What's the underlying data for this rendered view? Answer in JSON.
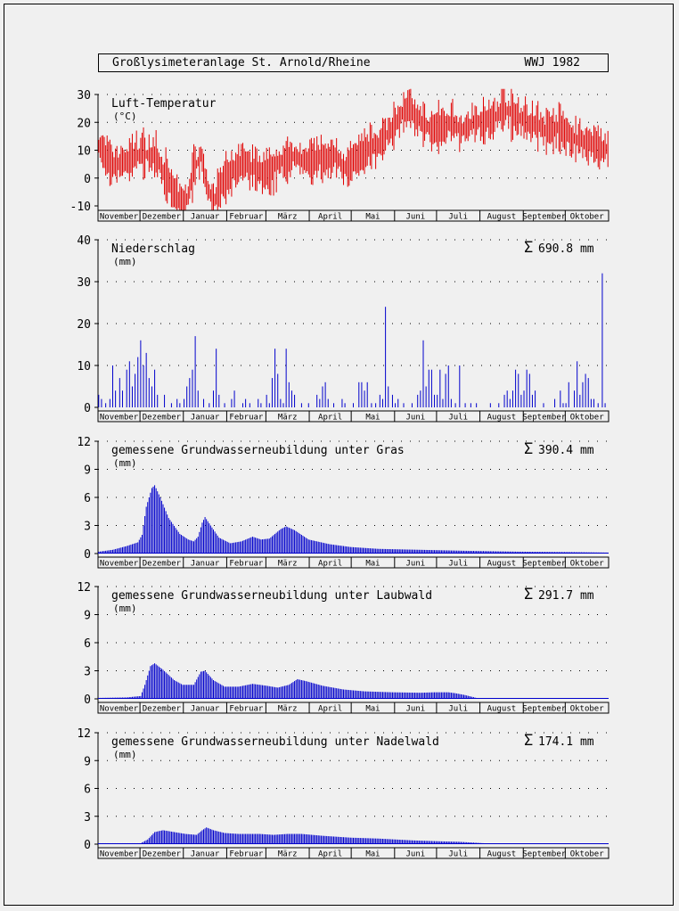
{
  "header": {
    "title": "Großlysimeteranlage St. Arnold/Rheine",
    "year": "WWJ 1982"
  },
  "months": [
    "November",
    "Dezember",
    "Januar",
    "Februar",
    "März",
    "April",
    "Mai",
    "Juni",
    "Juli",
    "August",
    "September",
    "Oktober"
  ],
  "chart_data": [
    {
      "type": "bar",
      "title": "Luft-Temperatur",
      "ylabel": "(°C)",
      "sum_label": "",
      "ylim": [
        -10,
        30
      ],
      "yticks": [
        -10,
        0,
        10,
        20,
        30
      ],
      "color": "#e00000",
      "pattern": "temperature",
      "anchors": [
        [
          0,
          12
        ],
        [
          10,
          4
        ],
        [
          20,
          6
        ],
        [
          30,
          9
        ],
        [
          40,
          8
        ],
        [
          45,
          4
        ],
        [
          52,
          -3
        ],
        [
          58,
          -8
        ],
        [
          62,
          -10
        ],
        [
          68,
          3
        ],
        [
          73,
          8
        ],
        [
          78,
          -4
        ],
        [
          82,
          -9
        ],
        [
          88,
          -2
        ],
        [
          95,
          2
        ],
        [
          102,
          5
        ],
        [
          110,
          4
        ],
        [
          118,
          1
        ],
        [
          125,
          4
        ],
        [
          132,
          6
        ],
        [
          140,
          8
        ],
        [
          150,
          6
        ],
        [
          160,
          7
        ],
        [
          170,
          8
        ],
        [
          175,
          3
        ],
        [
          182,
          7
        ],
        [
          190,
          10
        ],
        [
          200,
          12
        ],
        [
          208,
          17
        ],
        [
          215,
          22
        ],
        [
          222,
          26
        ],
        [
          230,
          20
        ],
        [
          238,
          17
        ],
        [
          245,
          18
        ],
        [
          252,
          20
        ],
        [
          260,
          17
        ],
        [
          270,
          20
        ],
        [
          280,
          21
        ],
        [
          290,
          25
        ],
        [
          300,
          21
        ],
        [
          310,
          20
        ],
        [
          320,
          17
        ],
        [
          330,
          18
        ],
        [
          340,
          14
        ],
        [
          350,
          13
        ],
        [
          358,
          11
        ],
        [
          365,
          10
        ]
      ]
    },
    {
      "type": "bar",
      "title": "Niederschlag",
      "ylabel": "(mm)",
      "sum_label": "690.8 mm",
      "ylim": [
        0,
        40
      ],
      "yticks": [
        0,
        10,
        20,
        30,
        40
      ],
      "color": "#0000cc",
      "pattern": "spikes",
      "spikes": [
        [
          0,
          3
        ],
        [
          2,
          2
        ],
        [
          5,
          1
        ],
        [
          8,
          2
        ],
        [
          10,
          10
        ],
        [
          12,
          4
        ],
        [
          15,
          7
        ],
        [
          17,
          4
        ],
        [
          20,
          9
        ],
        [
          22,
          11
        ],
        [
          24,
          5
        ],
        [
          26,
          8
        ],
        [
          28,
          12
        ],
        [
          30,
          16
        ],
        [
          32,
          10
        ],
        [
          34,
          13
        ],
        [
          36,
          7
        ],
        [
          38,
          5
        ],
        [
          40,
          9
        ],
        [
          42,
          3
        ],
        [
          47,
          3
        ],
        [
          52,
          1
        ],
        [
          56,
          2
        ],
        [
          58,
          1
        ],
        [
          61,
          2
        ],
        [
          63,
          5
        ],
        [
          65,
          7
        ],
        [
          67,
          9
        ],
        [
          69,
          17
        ],
        [
          71,
          4
        ],
        [
          75,
          2
        ],
        [
          79,
          1
        ],
        [
          82,
          4
        ],
        [
          84,
          14
        ],
        [
          86,
          3
        ],
        [
          90,
          1
        ],
        [
          95,
          2
        ],
        [
          97,
          4
        ],
        [
          103,
          1
        ],
        [
          105,
          2
        ],
        [
          108,
          1
        ],
        [
          114,
          2
        ],
        [
          116,
          1
        ],
        [
          120,
          3
        ],
        [
          122,
          1
        ],
        [
          124,
          7
        ],
        [
          126,
          14
        ],
        [
          128,
          8
        ],
        [
          130,
          2
        ],
        [
          132,
          1
        ],
        [
          134,
          14
        ],
        [
          136,
          6
        ],
        [
          138,
          4
        ],
        [
          140,
          3
        ],
        [
          145,
          1
        ],
        [
          150,
          1
        ],
        [
          156,
          3
        ],
        [
          158,
          2
        ],
        [
          160,
          5
        ],
        [
          162,
          6
        ],
        [
          164,
          2
        ],
        [
          168,
          1
        ],
        [
          174,
          2
        ],
        [
          176,
          1
        ],
        [
          182,
          1
        ],
        [
          186,
          6
        ],
        [
          188,
          6
        ],
        [
          190,
          4
        ],
        [
          192,
          6
        ],
        [
          195,
          1
        ],
        [
          198,
          1
        ],
        [
          201,
          3
        ],
        [
          203,
          2
        ],
        [
          205,
          24
        ],
        [
          207,
          5
        ],
        [
          210,
          3
        ],
        [
          212,
          1
        ],
        [
          214,
          2
        ],
        [
          218,
          1
        ],
        [
          224,
          1
        ],
        [
          228,
          3
        ],
        [
          230,
          4
        ],
        [
          232,
          16
        ],
        [
          234,
          5
        ],
        [
          236,
          9
        ],
        [
          238,
          9
        ],
        [
          240,
          3
        ],
        [
          242,
          3
        ],
        [
          244,
          9
        ],
        [
          246,
          2
        ],
        [
          248,
          8
        ],
        [
          250,
          10
        ],
        [
          252,
          2
        ],
        [
          255,
          1
        ],
        [
          258,
          10
        ],
        [
          262,
          1
        ],
        [
          266,
          1
        ],
        [
          270,
          1
        ],
        [
          280,
          1
        ],
        [
          286,
          1
        ],
        [
          290,
          3
        ],
        [
          292,
          4
        ],
        [
          294,
          2
        ],
        [
          296,
          4
        ],
        [
          298,
          9
        ],
        [
          300,
          8
        ],
        [
          302,
          3
        ],
        [
          304,
          4
        ],
        [
          306,
          9
        ],
        [
          308,
          8
        ],
        [
          310,
          3
        ],
        [
          312,
          4
        ],
        [
          318,
          1
        ],
        [
          326,
          2
        ],
        [
          330,
          4
        ],
        [
          332,
          1
        ],
        [
          334,
          1
        ],
        [
          336,
          6
        ],
        [
          340,
          4
        ],
        [
          342,
          11
        ],
        [
          344,
          3
        ],
        [
          346,
          6
        ],
        [
          348,
          8
        ],
        [
          350,
          7
        ],
        [
          352,
          2
        ],
        [
          354,
          2
        ],
        [
          357,
          1
        ],
        [
          360,
          32
        ],
        [
          362,
          1
        ]
      ]
    },
    {
      "type": "bar",
      "title": "gemessene Grundwasserneubildung unter Gras",
      "ylabel": "(mm)",
      "sum_label": "390.4 mm",
      "ylim": [
        0,
        12
      ],
      "yticks": [
        0,
        3,
        6,
        9,
        12
      ],
      "color": "#0000cc",
      "pattern": "smooth",
      "anchors": [
        [
          0,
          0.2
        ],
        [
          10,
          0.4
        ],
        [
          20,
          0.8
        ],
        [
          28,
          1.2
        ],
        [
          31,
          2
        ],
        [
          34,
          5
        ],
        [
          38,
          7
        ],
        [
          40,
          7.3
        ],
        [
          44,
          6
        ],
        [
          50,
          3.8
        ],
        [
          58,
          2.1
        ],
        [
          64,
          1.5
        ],
        [
          68,
          1.3
        ],
        [
          71,
          1.8
        ],
        [
          74,
          3.3
        ],
        [
          76,
          3.9
        ],
        [
          80,
          3
        ],
        [
          86,
          1.7
        ],
        [
          94,
          1.1
        ],
        [
          102,
          1.3
        ],
        [
          110,
          1.8
        ],
        [
          116,
          1.5
        ],
        [
          122,
          1.6
        ],
        [
          130,
          2.6
        ],
        [
          134,
          2.9
        ],
        [
          140,
          2.5
        ],
        [
          150,
          1.5
        ],
        [
          165,
          1.0
        ],
        [
          180,
          0.7
        ],
        [
          200,
          0.5
        ],
        [
          230,
          0.4
        ],
        [
          260,
          0.3
        ],
        [
          300,
          0.2
        ],
        [
          340,
          0.15
        ],
        [
          365,
          0.1
        ]
      ]
    },
    {
      "type": "bar",
      "title": "gemessene Grundwasserneubildung unter Laubwald",
      "ylabel": "(mm)",
      "sum_label": "291.7 mm",
      "ylim": [
        0,
        12
      ],
      "yticks": [
        0,
        3,
        6,
        9,
        12
      ],
      "color": "#0000cc",
      "pattern": "smooth",
      "anchors": [
        [
          0,
          0.1
        ],
        [
          20,
          0.15
        ],
        [
          30,
          0.3
        ],
        [
          33,
          1.5
        ],
        [
          37,
          3.5
        ],
        [
          40,
          3.8
        ],
        [
          46,
          3.1
        ],
        [
          54,
          2.0
        ],
        [
          60,
          1.5
        ],
        [
          68,
          1.5
        ],
        [
          73,
          2.9
        ],
        [
          76,
          3.0
        ],
        [
          82,
          2.0
        ],
        [
          90,
          1.3
        ],
        [
          100,
          1.3
        ],
        [
          110,
          1.6
        ],
        [
          120,
          1.4
        ],
        [
          128,
          1.2
        ],
        [
          136,
          1.5
        ],
        [
          142,
          2.1
        ],
        [
          148,
          1.9
        ],
        [
          160,
          1.4
        ],
        [
          175,
          1.0
        ],
        [
          190,
          0.8
        ],
        [
          210,
          0.7
        ],
        [
          230,
          0.65
        ],
        [
          240,
          0.7
        ],
        [
          250,
          0.7
        ],
        [
          255,
          0.6
        ],
        [
          262,
          0.4
        ],
        [
          270,
          0.1
        ],
        [
          280,
          0.02
        ],
        [
          365,
          0.0
        ]
      ]
    },
    {
      "type": "bar",
      "title": "gemessene Grundwasserneubildung unter Nadelwald",
      "ylabel": "(mm)",
      "sum_label": "174.1 mm",
      "ylim": [
        0,
        12
      ],
      "yticks": [
        0,
        3,
        6,
        9,
        12
      ],
      "color": "#0000cc",
      "pattern": "smooth",
      "anchors": [
        [
          0,
          0.1
        ],
        [
          30,
          0.1
        ],
        [
          35,
          0.5
        ],
        [
          40,
          1.3
        ],
        [
          46,
          1.5
        ],
        [
          54,
          1.3
        ],
        [
          62,
          1.1
        ],
        [
          70,
          1.0
        ],
        [
          74,
          1.5
        ],
        [
          77,
          1.8
        ],
        [
          82,
          1.5
        ],
        [
          90,
          1.2
        ],
        [
          100,
          1.1
        ],
        [
          115,
          1.1
        ],
        [
          125,
          1.0
        ],
        [
          135,
          1.1
        ],
        [
          145,
          1.1
        ],
        [
          160,
          0.9
        ],
        [
          180,
          0.7
        ],
        [
          200,
          0.6
        ],
        [
          225,
          0.4
        ],
        [
          245,
          0.3
        ],
        [
          258,
          0.25
        ],
        [
          275,
          0.1
        ],
        [
          280,
          0.0
        ],
        [
          365,
          0.0
        ]
      ]
    }
  ]
}
